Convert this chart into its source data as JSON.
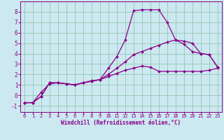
{
  "xlabel": "Windchill (Refroidissement éolien,°C)",
  "background_color": "#cce8f0",
  "grid_color": "#99ccbb",
  "line_color": "#880088",
  "xlim": [
    -0.5,
    23.5
  ],
  "ylim": [
    -1.6,
    9.0
  ],
  "xticks": [
    0,
    1,
    2,
    3,
    4,
    5,
    6,
    7,
    8,
    9,
    10,
    11,
    12,
    13,
    14,
    15,
    16,
    17,
    18,
    19,
    20,
    21,
    22,
    23
  ],
  "yticks": [
    -1,
    0,
    1,
    2,
    3,
    4,
    5,
    6,
    7,
    8
  ],
  "line1_x": [
    0,
    1,
    2,
    3,
    4,
    5,
    6,
    7,
    8,
    9,
    10,
    11,
    12,
    13,
    14,
    15,
    16,
    17,
    18,
    19,
    20,
    21,
    22,
    23
  ],
  "line1_y": [
    -0.7,
    -0.7,
    -0.1,
    1.2,
    1.2,
    1.1,
    1.0,
    1.2,
    1.4,
    1.5,
    2.6,
    3.7,
    5.3,
    8.1,
    8.2,
    8.2,
    8.2,
    7.0,
    5.3,
    4.9,
    4.2,
    4.0,
    3.9,
    2.7
  ],
  "line2_x": [
    0,
    1,
    2,
    3,
    4,
    5,
    6,
    7,
    8,
    9,
    10,
    11,
    12,
    13,
    14,
    15,
    16,
    17,
    18,
    19,
    20,
    21,
    22,
    23
  ],
  "line2_y": [
    -0.7,
    -0.7,
    -0.1,
    1.2,
    1.2,
    1.1,
    1.0,
    1.2,
    1.35,
    1.5,
    2.0,
    2.6,
    3.2,
    3.9,
    4.2,
    4.5,
    4.8,
    5.1,
    5.3,
    5.2,
    5.0,
    4.0,
    3.9,
    2.7
  ],
  "line3_x": [
    0,
    1,
    2,
    3,
    4,
    5,
    6,
    7,
    8,
    9,
    10,
    11,
    12,
    13,
    14,
    15,
    16,
    17,
    18,
    19,
    20,
    21,
    22,
    23
  ],
  "line3_y": [
    -0.7,
    -0.7,
    0.3,
    1.1,
    1.2,
    1.1,
    1.0,
    1.2,
    1.35,
    1.5,
    1.8,
    2.1,
    2.4,
    2.6,
    2.8,
    2.7,
    2.3,
    2.3,
    2.3,
    2.3,
    2.3,
    2.3,
    2.4,
    2.6
  ],
  "marker_size": 2.0,
  "line_width": 0.9,
  "tick_fontsize": 5.0,
  "xlabel_fontsize": 5.5
}
